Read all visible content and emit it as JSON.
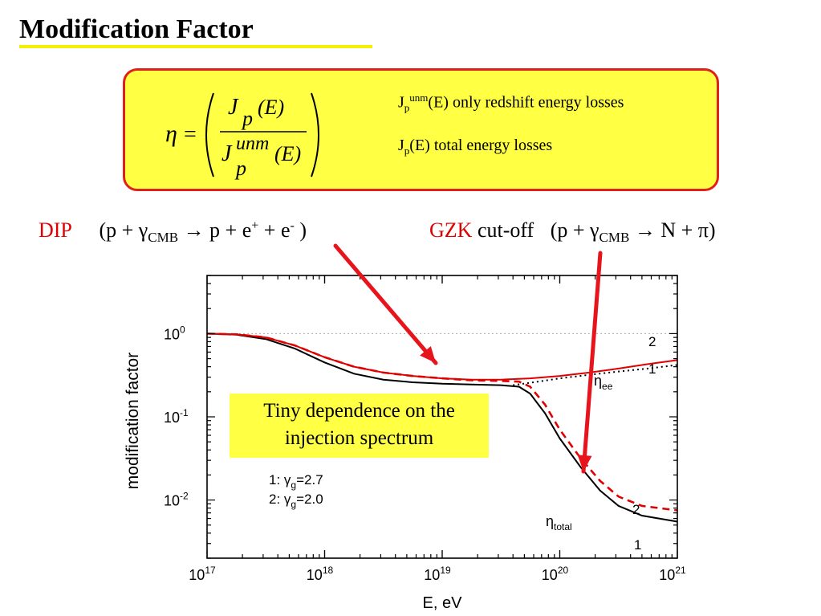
{
  "slide": {
    "title": "Modification Factor",
    "definitions": {
      "line1_main": "J",
      "line1_sub": "p",
      "line1_sup": "unm",
      "line1_rest": "(E)  only redshift energy losses",
      "line2_main": "J",
      "line2_sub": "p",
      "line2_rest": "(E)  total energy losses"
    },
    "formula": {
      "eta": "η",
      "equals": "=",
      "numerator_J": "J",
      "numerator_sub": "p",
      "numerator_arg": "(E)",
      "denominator_J": "J",
      "denominator_sup": "unm",
      "denominator_sub": "p",
      "denominator_arg": "(E)"
    },
    "dip": {
      "label": "DIP",
      "reaction_a": "(p + γ",
      "reaction_sub": "CMB",
      "reaction_b": " → p + e",
      "sup_plus": "+",
      "reaction_c": " + e",
      "sup_minus": "-",
      "reaction_d": " )"
    },
    "gzk": {
      "label": "GZK",
      "cutoff": " cut-off",
      "reaction_a": "(p + γ",
      "reaction_sub": "CMB",
      "reaction_b": " → N + π)"
    },
    "note": {
      "line1": "Tiny dependence on the",
      "line2": "injection spectrum"
    },
    "colors": {
      "accent_red": "#e00000",
      "highlight_yellow": "#ffff44",
      "box_border": "#e0201a",
      "arrow_red": "#e8141c"
    }
  },
  "chart_data": {
    "type": "line",
    "xlabel": "E, eV",
    "ylabel": "modification factor",
    "x_scale": "log",
    "y_scale": "log",
    "xlim": [
      1e+17,
      1e+21
    ],
    "ylim": [
      0.002,
      5
    ],
    "x_ticks": [
      {
        "mantissa": "10",
        "exp": "17"
      },
      {
        "mantissa": "10",
        "exp": "18"
      },
      {
        "mantissa": "10",
        "exp": "19"
      },
      {
        "mantissa": "10",
        "exp": "20"
      },
      {
        "mantissa": "10",
        "exp": "21"
      }
    ],
    "y_ticks": [
      {
        "mantissa": "10",
        "exp": "0"
      },
      {
        "mantissa": "10",
        "exp": "-1"
      },
      {
        "mantissa": "10",
        "exp": "-2"
      }
    ],
    "legend_lines": [
      {
        "num": "1:",
        "gamma": "γ",
        "sub": "g",
        "value": "=2.7"
      },
      {
        "num": "2:",
        "gamma": "γ",
        "sub": "g",
        "value": "=2.0"
      }
    ],
    "curve_labels": {
      "eta_ee": "η",
      "eta_ee_sub": "ee",
      "eta_total": "η",
      "eta_total_sub": "total",
      "one": "1",
      "two": "2"
    },
    "series": [
      {
        "id": "total-1",
        "color": "#000000",
        "dash": "solid",
        "points": [
          [
            1e+17,
            1.0
          ],
          [
            1.78e+17,
            0.97
          ],
          [
            3.16e+17,
            0.86
          ],
          [
            5.6e+17,
            0.66
          ],
          [
            1e+18,
            0.45
          ],
          [
            1.78e+18,
            0.33
          ],
          [
            3.16e+18,
            0.28
          ],
          [
            5.6e+18,
            0.26
          ],
          [
            1e+19,
            0.25
          ],
          [
            1.78e+19,
            0.245
          ],
          [
            3.16e+19,
            0.24
          ],
          [
            4.5e+19,
            0.23
          ],
          [
            5.6e+19,
            0.19
          ],
          [
            7.5e+19,
            0.11
          ],
          [
            1e+20,
            0.055
          ],
          [
            1.5e+20,
            0.025
          ],
          [
            2.2e+20,
            0.013
          ],
          [
            3.16e+20,
            0.0085
          ],
          [
            5e+20,
            0.0065
          ],
          [
            1e+21,
            0.0055
          ]
        ]
      },
      {
        "id": "total-2",
        "color": "#e00000",
        "dash": "dash",
        "points": [
          [
            1e+17,
            1.0
          ],
          [
            1.78e+17,
            0.98
          ],
          [
            3.16e+17,
            0.9
          ],
          [
            5.6e+17,
            0.72
          ],
          [
            1e+18,
            0.52
          ],
          [
            1.78e+18,
            0.4
          ],
          [
            3.16e+18,
            0.34
          ],
          [
            5.6e+18,
            0.31
          ],
          [
            1e+19,
            0.29
          ],
          [
            1.78e+19,
            0.275
          ],
          [
            3.16e+19,
            0.27
          ],
          [
            4.5e+19,
            0.265
          ],
          [
            5.6e+19,
            0.23
          ],
          [
            7.5e+19,
            0.14
          ],
          [
            1e+20,
            0.07
          ],
          [
            1.5e+20,
            0.032
          ],
          [
            2.2e+20,
            0.017
          ],
          [
            3.16e+20,
            0.011
          ],
          [
            5e+20,
            0.0085
          ],
          [
            1e+21,
            0.0075
          ]
        ]
      },
      {
        "id": "ee-1",
        "color": "#000000",
        "dash": "dot",
        "points": [
          [
            4e+19,
            0.24
          ],
          [
            6e+19,
            0.26
          ],
          [
            1e+20,
            0.29
          ],
          [
            1.78e+20,
            0.32
          ],
          [
            3.16e+20,
            0.35
          ],
          [
            5.6e+20,
            0.38
          ],
          [
            1e+21,
            0.42
          ]
        ]
      },
      {
        "id": "ee-2",
        "color": "#e00000",
        "dash": "solid",
        "points": [
          [
            1e+17,
            1.0
          ],
          [
            1.78e+17,
            0.98
          ],
          [
            3.16e+17,
            0.9
          ],
          [
            5.6e+17,
            0.72
          ],
          [
            1e+18,
            0.52
          ],
          [
            1.78e+18,
            0.4
          ],
          [
            3.16e+18,
            0.34
          ],
          [
            5.6e+18,
            0.31
          ],
          [
            1e+19,
            0.29
          ],
          [
            1.78e+19,
            0.28
          ],
          [
            3.16e+19,
            0.28
          ],
          [
            5.6e+19,
            0.29
          ],
          [
            1e+20,
            0.31
          ],
          [
            1.78e+20,
            0.34
          ],
          [
            3.16e+20,
            0.38
          ],
          [
            5.6e+20,
            0.43
          ],
          [
            1e+21,
            0.48
          ]
        ]
      }
    ],
    "reference_line": {
      "y": 1.0,
      "color": "#aaaaaa",
      "style": "dotted"
    }
  }
}
